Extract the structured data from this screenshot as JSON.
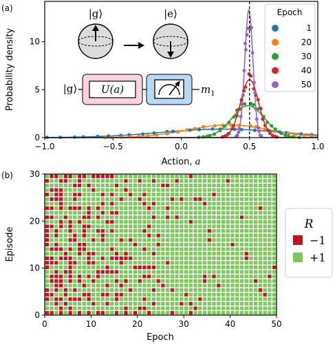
{
  "colors": {
    "epoch_1": "#1f77b4",
    "epoch_20": "#ff7f0e",
    "epoch_30": "#2ca02c",
    "epoch_40": "#d62728",
    "epoch_50": "#9467bd",
    "reward_neg": "#c0141f",
    "reward_pos": "#7cc85a",
    "box_unitary": "#f9d3df",
    "box_measure": "#b9d9f2"
  },
  "chart_data": [
    {
      "panel_label": "(a)",
      "type": "line",
      "xlabel": "Action, a",
      "ylabel": "Probability density",
      "xlim": [
        -1.0,
        1.0
      ],
      "ylim": [
        0,
        14.2
      ],
      "x_ticks": [
        "−1.0",
        "−0.5",
        "0.0",
        "0.5",
        "1.0"
      ],
      "y_ticks": [
        "0",
        "5",
        "10"
      ],
      "dashed_vline_x": 0.5,
      "legend": {
        "title": "Epoch",
        "placement": "top-right"
      },
      "series": [
        {
          "name": "1",
          "mu": 0.3,
          "sigma": 0.45,
          "scatter_noise": 0.04
        },
        {
          "name": "20",
          "mu": 0.35,
          "sigma": 0.3,
          "scatter_noise": 0.07
        },
        {
          "name": "30",
          "mu": 0.49,
          "sigma": 0.12,
          "scatter_noise": 0.1
        },
        {
          "name": "40",
          "mu": 0.5,
          "sigma": 0.066,
          "scatter_noise": 0.1
        },
        {
          "name": "50",
          "mu": 0.495,
          "sigma": 0.03,
          "scatter_noise": 0.13
        }
      ],
      "inset": {
        "ket_g": "|g⟩",
        "ket_e": "|e⟩",
        "gate": "U(a)",
        "measurement": "m",
        "measurement_sub": "1"
      }
    },
    {
      "panel_label": "(b)",
      "type": "heatmap",
      "xlabel": "Epoch",
      "ylabel": "Episode",
      "xlim": [
        0,
        50
      ],
      "ylim": [
        0,
        30
      ],
      "x_ticks": [
        "0",
        "10",
        "20",
        "30",
        "40",
        "50"
      ],
      "y_ticks": [
        "0",
        "10",
        "20",
        "30"
      ],
      "n_epochs": 50,
      "n_episodes": 31,
      "fraction_negative_by_epoch": [
        0.5,
        0.48,
        0.46,
        0.44,
        0.42,
        0.4,
        0.38,
        0.36,
        0.34,
        0.32,
        0.3,
        0.29,
        0.28,
        0.27,
        0.26,
        0.25,
        0.24,
        0.23,
        0.22,
        0.21,
        0.2,
        0.19,
        0.17,
        0.15,
        0.13,
        0.12,
        0.11,
        0.1,
        0.09,
        0.08,
        0.07,
        0.06,
        0.06,
        0.05,
        0.05,
        0.04,
        0.04,
        0.04,
        0.04,
        0.04,
        0.03,
        0.03,
        0.03,
        0.03,
        0.02,
        0.02,
        0.02,
        0.02,
        0.01,
        0.01
      ],
      "legend": {
        "title": "R",
        "items": [
          {
            "label": "−1",
            "value": -1
          },
          {
            "label": "+1",
            "value": 1
          }
        ]
      }
    }
  ]
}
